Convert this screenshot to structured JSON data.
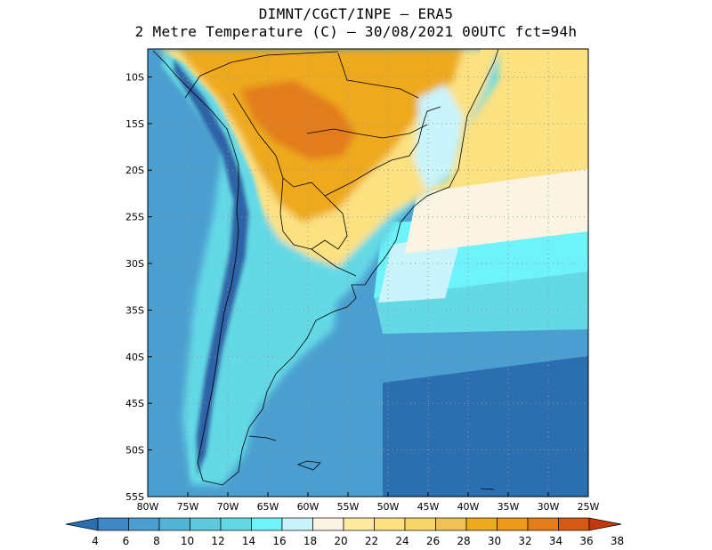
{
  "title": {
    "line1": "DIMNT/CGCT/INPE –  ERA5",
    "line2": "2 Metre Temperature (C) –  30/08/2021 00UTC fct=94h"
  },
  "map": {
    "region": "South America",
    "lon_range": [
      -80,
      -25
    ],
    "lat_range": [
      -55,
      -7
    ],
    "grid": "dotted",
    "lat_ticks": [
      "10S",
      "15S",
      "20S",
      "25S",
      "30S",
      "35S",
      "40S",
      "45S",
      "50S",
      "55S"
    ],
    "lon_ticks": [
      "80W",
      "75W",
      "70W",
      "65W",
      "60W",
      "55W",
      "50W",
      "45W",
      "40W",
      "35W",
      "30W",
      "25W"
    ]
  },
  "colorbar": {
    "labels": [
      "4",
      "6",
      "8",
      "10",
      "12",
      "14",
      "16",
      "18",
      "20",
      "22",
      "24",
      "26",
      "28",
      "30",
      "32",
      "34",
      "36",
      "38"
    ],
    "colors": [
      "#2c6fb0",
      "#3f87c4",
      "#4b9fd0",
      "#53b4d6",
      "#5ec8dc",
      "#63d9e6",
      "#6ff3fb",
      "#c9f4fb",
      "#fbf4e3",
      "#fdeba0",
      "#fce181",
      "#f7d46a",
      "#f0c155",
      "#eeaa1f",
      "#ec9819",
      "#e37d1a",
      "#d45a14",
      "#c1380f"
    ],
    "units": "C"
  },
  "field_colors": {
    "ocean_cold": "#2c6fb0",
    "ocean_mid": "#4b9fd0",
    "ocean_cool": "#63d9e6",
    "ocean_light": "#6ff3fb",
    "pale": "#c9f4fb",
    "cream": "#fbf4e3",
    "warm_yellow": "#fce181",
    "orange": "#eeaa1f",
    "hot": "#e37d1a",
    "andes": "#2f63a8",
    "coast": "#000000"
  }
}
